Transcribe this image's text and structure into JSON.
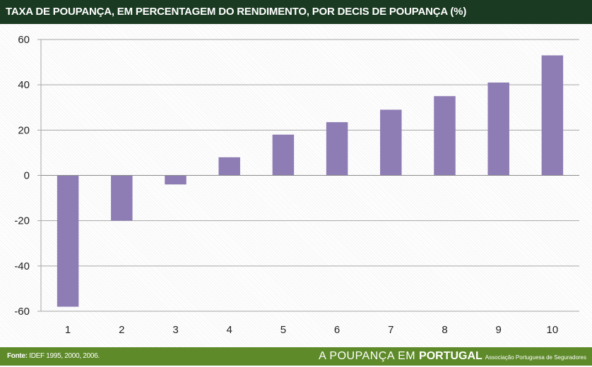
{
  "header": {
    "title": "TAXA DE POUPANÇA, EM PERCENTAGEM DO RENDIMENTO, POR DECIS DE POUPANÇA (%)"
  },
  "footer": {
    "source_label": "Fonte:",
    "source_text": " IDEF 1995, 2000, 2006.",
    "brand_prefix": "A POUPANÇA EM ",
    "brand_strong": "PORTUGAL",
    "brand_sub": "Associação Portuguesa de Seguradores"
  },
  "colors": {
    "bar": "#8e7cb4",
    "grid": "#a6a6a6",
    "title_bg": "#1a3a22",
    "footer_bg": "#5e8a2a"
  },
  "chart_data": {
    "type": "bar",
    "title": "TAXA DE POUPANÇA, EM PERCENTAGEM DO RENDIMENTO, POR DECIS DE POUPANÇA (%)",
    "xlabel": "",
    "ylabel": "",
    "categories": [
      "1",
      "2",
      "3",
      "4",
      "5",
      "6",
      "7",
      "8",
      "9",
      "10"
    ],
    "values": [
      -58,
      -20,
      -4,
      8,
      18,
      23.5,
      29,
      35,
      41,
      53
    ],
    "ylim": [
      -60,
      60
    ],
    "yticks": [
      60,
      40,
      20,
      0,
      -20,
      -40,
      -60
    ],
    "ytick_labels": [
      "60",
      "40",
      "20",
      "0",
      "-20",
      "-40",
      "-60"
    ],
    "grid": true,
    "legend": "none"
  }
}
